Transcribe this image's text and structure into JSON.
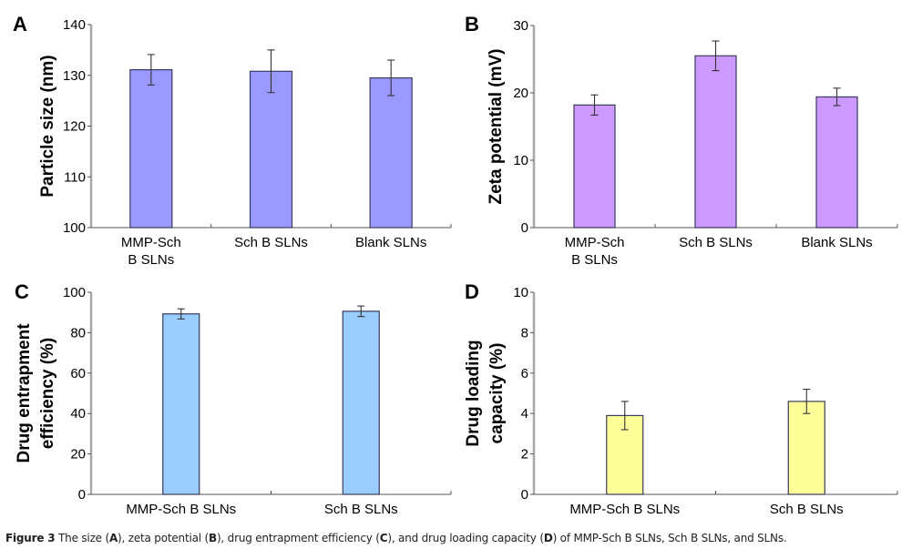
{
  "chart_data": [
    {
      "type": "bar",
      "panel": "A",
      "title": "",
      "xlabel": "",
      "ylabel": "Particle size (nm)",
      "categories": [
        "MMP-Sch B SLNs",
        "Sch B SLNs",
        "Blank SLNs"
      ],
      "category_lines": [
        [
          "MMP-Sch",
          "B SLNs"
        ],
        [
          "Sch B SLNs"
        ],
        [
          "Blank SLNs"
        ]
      ],
      "values": [
        131.1,
        130.8,
        129.5
      ],
      "errors": [
        3.0,
        4.2,
        3.5
      ],
      "ylim": [
        100,
        140
      ],
      "yticks": [
        100,
        110,
        120,
        130,
        140
      ],
      "grid": false,
      "color": "#9999FF"
    },
    {
      "type": "bar",
      "panel": "B",
      "title": "",
      "xlabel": "",
      "ylabel": "Zeta potential (mV)",
      "categories": [
        "MMP-Sch B SLNs",
        "Sch B SLNs",
        "Blank SLNs"
      ],
      "category_lines": [
        [
          "MMP-Sch",
          "B SLNs"
        ],
        [
          "Sch B SLNs"
        ],
        [
          "Blank SLNs"
        ]
      ],
      "values": [
        18.2,
        25.5,
        19.4
      ],
      "errors": [
        1.5,
        2.2,
        1.3
      ],
      "ylim": [
        0,
        30
      ],
      "yticks": [
        0,
        10,
        20,
        30
      ],
      "grid": false,
      "color": "#CC99FF"
    },
    {
      "type": "bar",
      "panel": "C",
      "title": "",
      "xlabel": "",
      "ylabel": "Drug entrapment efficiency (%)",
      "ylabel_lines": [
        "Drug entrapment",
        "efficiency (%)"
      ],
      "categories": [
        "MMP-Sch B SLNs",
        "Sch B SLNs"
      ],
      "category_lines": [
        [
          "MMP-Sch B SLNs"
        ],
        [
          "Sch B SLNs"
        ]
      ],
      "values": [
        89.3,
        90.6
      ],
      "errors": [
        2.5,
        2.6
      ],
      "ylim": [
        0,
        100
      ],
      "yticks": [
        0,
        20,
        40,
        60,
        80,
        100
      ],
      "grid": false,
      "color": "#99CCFF"
    },
    {
      "type": "bar",
      "panel": "D",
      "title": "",
      "xlabel": "",
      "ylabel": "Drug loading capacity (%)",
      "ylabel_lines": [
        "Drug loading",
        "capacity (%)"
      ],
      "categories": [
        "MMP-Sch B SLNs",
        "Sch B SLNs"
      ],
      "category_lines": [
        [
          "MMP-Sch B SLNs"
        ],
        [
          "Sch B SLNs"
        ]
      ],
      "values": [
        3.9,
        4.6
      ],
      "errors": [
        0.7,
        0.6
      ],
      "ylim": [
        0,
        10
      ],
      "yticks": [
        0,
        2,
        4,
        6,
        8,
        10
      ],
      "grid": false,
      "color": "#FFFF99"
    }
  ],
  "caption": {
    "label": "Figure 3",
    "text_parts": [
      {
        "t": " The size (",
        "b": false
      },
      {
        "t": "A",
        "b": true
      },
      {
        "t": "), zeta potential (",
        "b": false
      },
      {
        "t": "B",
        "b": true
      },
      {
        "t": "), drug entrapment efficiency (",
        "b": false
      },
      {
        "t": "C",
        "b": true
      },
      {
        "t": "), and drug loading capacity (",
        "b": false
      },
      {
        "t": "D",
        "b": true
      },
      {
        "t": ") of MMP-Sch B SLNs, Sch B SLNs, and SLNs.",
        "b": false
      }
    ]
  },
  "colors": {
    "bar_border": "#3a3a5a",
    "axis_line": "#a8a8a8",
    "tick": "#555555",
    "error_bar": "#333333"
  }
}
